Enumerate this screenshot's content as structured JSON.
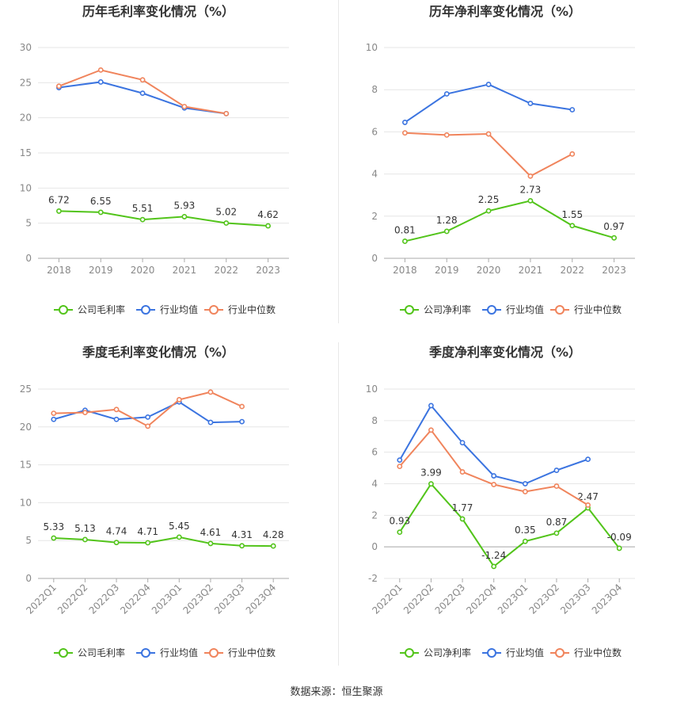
{
  "source": "数据来源：恒生聚源",
  "colors": {
    "company": "#52c41a",
    "avg": "#3b74e0",
    "median": "#f0845c"
  },
  "chart_data": [
    {
      "type": "line",
      "title": "历年毛利率变化情况（%）",
      "categories": [
        "2018",
        "2019",
        "2020",
        "2021",
        "2022",
        "2023"
      ],
      "ylim": [
        0,
        30
      ],
      "yticks": [
        0,
        5,
        10,
        15,
        20,
        25,
        30
      ],
      "grid": true,
      "legend": "bottom",
      "series": [
        {
          "name": "公司毛利率",
          "color": "#52c41a",
          "labels": true,
          "values": [
            6.72,
            6.55,
            5.51,
            5.93,
            5.02,
            4.62
          ]
        },
        {
          "name": "行业均值",
          "color": "#3b74e0",
          "labels": false,
          "values": [
            24.3,
            25.1,
            23.5,
            21.4,
            20.6,
            null
          ]
        },
        {
          "name": "行业中位数",
          "color": "#f0845c",
          "labels": false,
          "values": [
            24.5,
            26.8,
            25.4,
            21.6,
            20.6,
            null
          ]
        }
      ]
    },
    {
      "type": "line",
      "title": "历年净利率变化情况（%）",
      "categories": [
        "2018",
        "2019",
        "2020",
        "2021",
        "2022",
        "2023"
      ],
      "ylim": [
        0,
        10
      ],
      "yticks": [
        0,
        2,
        4,
        6,
        8,
        10
      ],
      "grid": true,
      "legend": "bottom",
      "series": [
        {
          "name": "公司净利率",
          "color": "#52c41a",
          "labels": true,
          "values": [
            0.81,
            1.28,
            2.25,
            2.73,
            1.55,
            0.97
          ]
        },
        {
          "name": "行业均值",
          "color": "#3b74e0",
          "labels": false,
          "values": [
            6.45,
            7.8,
            8.25,
            7.35,
            7.05,
            null
          ]
        },
        {
          "name": "行业中位数",
          "color": "#f0845c",
          "labels": false,
          "values": [
            5.95,
            5.85,
            5.9,
            3.9,
            4.95,
            null
          ]
        }
      ]
    },
    {
      "type": "line",
      "title": "季度毛利率变化情况（%）",
      "categories": [
        "2022Q1",
        "2022Q2",
        "2022Q3",
        "2022Q4",
        "2023Q1",
        "2023Q2",
        "2023Q3",
        "2023Q4"
      ],
      "ylim": [
        0,
        25
      ],
      "yticks": [
        0,
        5,
        10,
        15,
        20,
        25
      ],
      "grid": true,
      "legend": "bottom",
      "rotate_ticks": true,
      "series": [
        {
          "name": "公司毛利率",
          "color": "#52c41a",
          "labels": true,
          "values": [
            5.33,
            5.13,
            4.74,
            4.71,
            5.45,
            4.61,
            4.31,
            4.28
          ]
        },
        {
          "name": "行业均值",
          "color": "#3b74e0",
          "labels": false,
          "values": [
            21.0,
            22.2,
            21.0,
            21.3,
            23.3,
            20.6,
            20.7,
            null
          ]
        },
        {
          "name": "行业中位数",
          "color": "#f0845c",
          "labels": false,
          "values": [
            21.8,
            21.9,
            22.3,
            20.1,
            23.6,
            24.6,
            22.7,
            null
          ]
        }
      ]
    },
    {
      "type": "line",
      "title": "季度净利率变化情况（%）",
      "categories": [
        "2022Q1",
        "2022Q2",
        "2022Q3",
        "2022Q4",
        "2023Q1",
        "2023Q2",
        "2023Q3",
        "2023Q4"
      ],
      "ylim": [
        -2,
        10
      ],
      "yticks": [
        -2,
        0,
        2,
        4,
        6,
        8,
        10
      ],
      "grid": true,
      "legend": "bottom",
      "rotate_ticks": true,
      "series": [
        {
          "name": "公司净利率",
          "color": "#52c41a",
          "labels": true,
          "values": [
            0.93,
            3.99,
            1.77,
            -1.24,
            0.35,
            0.87,
            2.47,
            -0.09
          ]
        },
        {
          "name": "行业均值",
          "color": "#3b74e0",
          "labels": false,
          "values": [
            5.5,
            8.95,
            6.6,
            4.5,
            4.0,
            4.85,
            5.55,
            null
          ]
        },
        {
          "name": "行业中位数",
          "color": "#f0845c",
          "labels": false,
          "values": [
            5.1,
            7.4,
            4.75,
            3.95,
            3.5,
            3.85,
            2.65,
            null
          ]
        }
      ]
    }
  ]
}
